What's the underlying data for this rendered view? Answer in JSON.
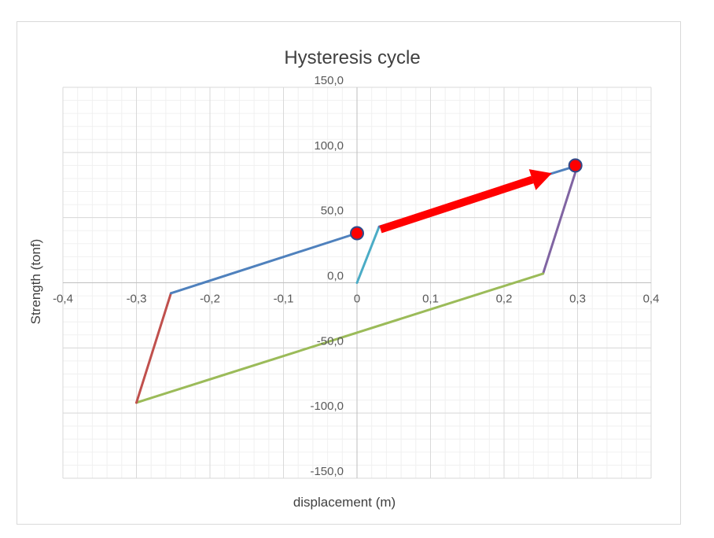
{
  "chart_data": {
    "type": "line",
    "title": "Hysteresis cycle",
    "xlabel": "displacement (m)",
    "ylabel": "Strength (tonf)",
    "xlim": [
      -0.4,
      0.4
    ],
    "ylim": [
      -150,
      150
    ],
    "x_major_step": 0.1,
    "y_major_step": 50,
    "x_tick_labels": [
      "-0,4",
      "-0,3",
      "-0,2",
      "-0,1",
      "0",
      "0,1",
      "0,2",
      "0,3",
      "0,4"
    ],
    "y_tick_labels": [
      "-150,0",
      "-100,0",
      "-50,0",
      "0,0",
      "50,0",
      "100,0",
      "150,0"
    ],
    "grid": true,
    "minor_grid": true,
    "legend": false,
    "series": [
      {
        "color": "#4bacc6",
        "points": [
          [
            0,
            0
          ],
          [
            0.03,
            43
          ]
        ]
      },
      {
        "color": "#4f81bd",
        "points": [
          [
            0.03,
            43
          ],
          [
            0.3,
            90
          ]
        ]
      },
      {
        "color": "#8064a2",
        "points": [
          [
            0.3,
            90
          ],
          [
            0.253,
            7
          ]
        ]
      },
      {
        "color": "#9bbb59",
        "points": [
          [
            0.253,
            7
          ],
          [
            -0.3,
            -92
          ]
        ]
      },
      {
        "color": "#c0504d",
        "points": [
          [
            -0.3,
            -92
          ],
          [
            -0.253,
            -8
          ]
        ]
      },
      {
        "color": "#4f81bd",
        "points": [
          [
            -0.253,
            -8
          ],
          [
            0,
            38
          ]
        ]
      }
    ],
    "markers": [
      {
        "x": 0,
        "y": 38,
        "fill": "#ff0000",
        "stroke": "#2f4a8a"
      },
      {
        "x": 0.297,
        "y": 90,
        "fill": "#ff0000",
        "stroke": "#2f4a8a"
      }
    ],
    "arrow": {
      "from": [
        0.032,
        41
      ],
      "to": [
        0.265,
        84
      ],
      "color": "#ff0000"
    }
  }
}
